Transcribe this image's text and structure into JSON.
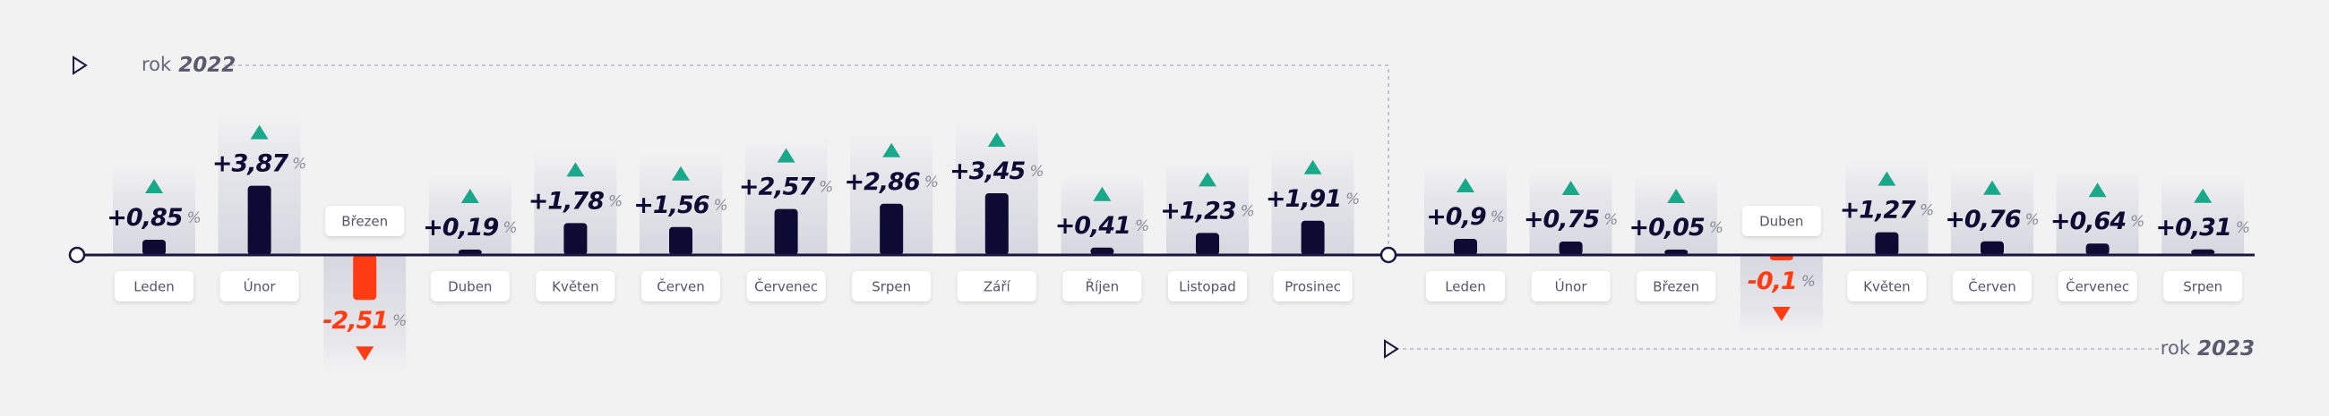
{
  "chart_data": [
    {
      "type": "bar",
      "label": "rok",
      "year": "2022",
      "unit": "%",
      "categories": [
        "Leden",
        "Únor",
        "Březen",
        "Duben",
        "Květen",
        "Červen",
        "Červenec",
        "Srpen",
        "Září",
        "Říjen",
        "Listopad",
        "Prosinec"
      ],
      "values": [
        0.85,
        3.87,
        -2.51,
        0.19,
        1.78,
        1.56,
        2.57,
        2.86,
        3.45,
        0.41,
        1.23,
        1.91
      ],
      "value_labels": [
        "+0,85",
        "+3,87",
        "-2,51",
        "+0,19",
        "+1,78",
        "+1,56",
        "+2,57",
        "+2,86",
        "+3,45",
        "+0,41",
        "+1,23",
        "+1,91"
      ],
      "colors": {
        "bar": "#0d0b33",
        "up": "#19a98a",
        "down": "#ff3b14"
      }
    },
    {
      "type": "bar",
      "label": "rok",
      "year": "2023",
      "unit": "%",
      "categories": [
        "Leden",
        "Únor",
        "Březen",
        "Duben",
        "Květen",
        "Červen",
        "Červenec",
        "Srpen"
      ],
      "values": [
        0.9,
        0.75,
        0.05,
        -0.1,
        1.27,
        0.76,
        0.64,
        0.31
      ],
      "value_labels": [
        "+0,9",
        "+0,75",
        "+0,05",
        "-0,1",
        "+1,27",
        "+0,76",
        "+0,64",
        "+0,31"
      ],
      "colors": {
        "bar": "#0d0b33",
        "up": "#19a98a",
        "down": "#ff3b14"
      }
    }
  ]
}
